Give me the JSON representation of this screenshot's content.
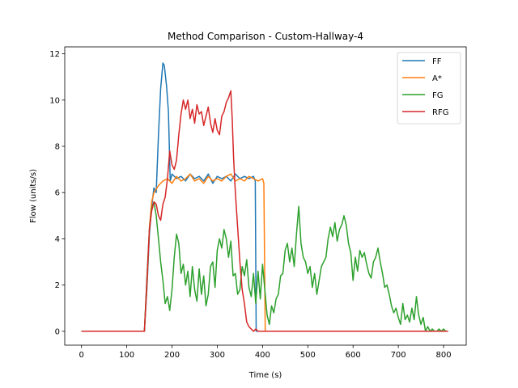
{
  "chart_data": {
    "type": "line",
    "title": "Method Comparison - Custom-Hallway-4",
    "xlabel": "Time (s)",
    "ylabel": "Flow (units/s)",
    "xlim": [
      -37,
      850
    ],
    "ylim": [
      -0.6,
      12.3
    ],
    "x_ticks": [
      0,
      100,
      200,
      300,
      400,
      500,
      600,
      700,
      800
    ],
    "y_ticks": [
      0,
      2,
      4,
      6,
      8,
      10,
      12
    ],
    "grid": false,
    "legend_position": "top-right",
    "series": [
      {
        "name": "FF",
        "color": "#1f77b4",
        "points": [
          [
            0,
            0
          ],
          [
            100,
            0
          ],
          [
            139,
            0
          ],
          [
            145,
            2
          ],
          [
            150,
            4.2
          ],
          [
            155,
            5.4
          ],
          [
            160,
            6.2
          ],
          [
            165,
            6.0
          ],
          [
            170,
            8.5
          ],
          [
            175,
            10.5
          ],
          [
            180,
            11.6
          ],
          [
            183,
            11.5
          ],
          [
            188,
            10.6
          ],
          [
            192,
            9.5
          ],
          [
            196,
            6.5
          ],
          [
            200,
            6.8
          ],
          [
            210,
            6.6
          ],
          [
            220,
            6.7
          ],
          [
            230,
            6.5
          ],
          [
            240,
            6.8
          ],
          [
            250,
            6.6
          ],
          [
            260,
            6.7
          ],
          [
            270,
            6.5
          ],
          [
            280,
            6.8
          ],
          [
            290,
            6.4
          ],
          [
            300,
            6.7
          ],
          [
            310,
            6.6
          ],
          [
            320,
            6.7
          ],
          [
            330,
            6.5
          ],
          [
            340,
            6.8
          ],
          [
            350,
            6.6
          ],
          [
            360,
            6.7
          ],
          [
            370,
            6.6
          ],
          [
            380,
            6.7
          ],
          [
            384,
            6.5
          ],
          [
            386,
            0
          ],
          [
            400,
            0
          ],
          [
            500,
            0
          ],
          [
            600,
            0
          ],
          [
            700,
            0
          ],
          [
            810,
            0
          ]
        ]
      },
      {
        "name": "A*",
        "color": "#ff7f0e",
        "points": [
          [
            0,
            0
          ],
          [
            100,
            0
          ],
          [
            139,
            0
          ],
          [
            145,
            2.2
          ],
          [
            150,
            4.5
          ],
          [
            155,
            5.6
          ],
          [
            160,
            6.0
          ],
          [
            170,
            6.3
          ],
          [
            180,
            6.5
          ],
          [
            190,
            6.6
          ],
          [
            200,
            6.4
          ],
          [
            210,
            6.7
          ],
          [
            220,
            6.5
          ],
          [
            230,
            6.6
          ],
          [
            240,
            6.8
          ],
          [
            250,
            6.5
          ],
          [
            260,
            6.6
          ],
          [
            270,
            6.4
          ],
          [
            280,
            6.7
          ],
          [
            290,
            6.5
          ],
          [
            300,
            6.6
          ],
          [
            310,
            6.5
          ],
          [
            320,
            6.7
          ],
          [
            330,
            6.8
          ],
          [
            340,
            6.5
          ],
          [
            350,
            6.6
          ],
          [
            360,
            6.5
          ],
          [
            370,
            6.7
          ],
          [
            380,
            6.6
          ],
          [
            390,
            6.5
          ],
          [
            400,
            6.6
          ],
          [
            403,
            6.4
          ],
          [
            406,
            0
          ],
          [
            500,
            0
          ],
          [
            600,
            0
          ],
          [
            700,
            0
          ],
          [
            810,
            0
          ]
        ]
      },
      {
        "name": "FG",
        "color": "#2ca02c",
        "points": [
          [
            0,
            0
          ],
          [
            100,
            0
          ],
          [
            139,
            0
          ],
          [
            145,
            2.5
          ],
          [
            150,
            4.4
          ],
          [
            155,
            5.3
          ],
          [
            160,
            5.6
          ],
          [
            165,
            5.0
          ],
          [
            170,
            4.0
          ],
          [
            175,
            3.0
          ],
          [
            180,
            2.2
          ],
          [
            185,
            1.2
          ],
          [
            190,
            1.5
          ],
          [
            195,
            0.9
          ],
          [
            200,
            1.8
          ],
          [
            205,
            3.2
          ],
          [
            210,
            4.2
          ],
          [
            215,
            3.8
          ],
          [
            220,
            2.5
          ],
          [
            225,
            2.9
          ],
          [
            230,
            2.0
          ],
          [
            235,
            2.6
          ],
          [
            240,
            1.5
          ],
          [
            245,
            2.8
          ],
          [
            250,
            1.8
          ],
          [
            255,
            1.3
          ],
          [
            260,
            2.7
          ],
          [
            265,
            1.6
          ],
          [
            270,
            2.4
          ],
          [
            275,
            1.1
          ],
          [
            280,
            1.6
          ],
          [
            285,
            2.8
          ],
          [
            290,
            3.0
          ],
          [
            295,
            1.9
          ],
          [
            300,
            3.5
          ],
          [
            305,
            4.0
          ],
          [
            310,
            3.6
          ],
          [
            315,
            4.4
          ],
          [
            320,
            4.0
          ],
          [
            325,
            3.2
          ],
          [
            330,
            3.9
          ],
          [
            335,
            2.4
          ],
          [
            340,
            2.5
          ],
          [
            345,
            1.6
          ],
          [
            350,
            1.8
          ],
          [
            355,
            2.8
          ],
          [
            360,
            2.4
          ],
          [
            365,
            3.1
          ],
          [
            370,
            1.9
          ],
          [
            375,
            1.5
          ],
          [
            380,
            2.5
          ],
          [
            385,
            1.2
          ],
          [
            390,
            2.6
          ],
          [
            395,
            1.4
          ],
          [
            400,
            2.9
          ],
          [
            405,
            1.8
          ],
          [
            410,
            0.7
          ],
          [
            415,
            0.3
          ],
          [
            420,
            1.1
          ],
          [
            425,
            0.8
          ],
          [
            430,
            1.4
          ],
          [
            435,
            1.6
          ],
          [
            440,
            2.4
          ],
          [
            445,
            2.5
          ],
          [
            450,
            3.5
          ],
          [
            455,
            3.8
          ],
          [
            460,
            3.0
          ],
          [
            465,
            3.6
          ],
          [
            470,
            2.8
          ],
          [
            475,
            4.2
          ],
          [
            480,
            5.4
          ],
          [
            485,
            3.8
          ],
          [
            490,
            3.2
          ],
          [
            495,
            3.0
          ],
          [
            500,
            2.5
          ],
          [
            505,
            2.8
          ],
          [
            510,
            1.9
          ],
          [
            515,
            2.5
          ],
          [
            520,
            1.6
          ],
          [
            525,
            2.2
          ],
          [
            530,
            2.8
          ],
          [
            535,
            3.0
          ],
          [
            540,
            3.2
          ],
          [
            545,
            4.0
          ],
          [
            550,
            4.5
          ],
          [
            555,
            4.1
          ],
          [
            560,
            4.7
          ],
          [
            565,
            3.9
          ],
          [
            570,
            4.4
          ],
          [
            575,
            4.6
          ],
          [
            580,
            5.0
          ],
          [
            585,
            4.6
          ],
          [
            590,
            3.8
          ],
          [
            595,
            3.4
          ],
          [
            600,
            2.2
          ],
          [
            605,
            3.2
          ],
          [
            610,
            2.6
          ],
          [
            615,
            3.5
          ],
          [
            620,
            3.2
          ],
          [
            625,
            3.4
          ],
          [
            630,
            2.9
          ],
          [
            635,
            2.5
          ],
          [
            640,
            2.3
          ],
          [
            645,
            3.0
          ],
          [
            650,
            3.2
          ],
          [
            655,
            3.6
          ],
          [
            660,
            3.0
          ],
          [
            665,
            2.5
          ],
          [
            670,
            1.9
          ],
          [
            675,
            2.0
          ],
          [
            680,
            1.6
          ],
          [
            685,
            1.1
          ],
          [
            690,
            0.8
          ],
          [
            695,
            1.0
          ],
          [
            700,
            0.6
          ],
          [
            705,
            0.3
          ],
          [
            710,
            1.2
          ],
          [
            715,
            0.5
          ],
          [
            720,
            0.7
          ],
          [
            725,
            0.4
          ],
          [
            730,
            1.0
          ],
          [
            735,
            0.5
          ],
          [
            740,
            1.5
          ],
          [
            745,
            0.7
          ],
          [
            750,
            0.3
          ],
          [
            755,
            0.6
          ],
          [
            760,
            0
          ],
          [
            765,
            0.2
          ],
          [
            770,
            0
          ],
          [
            775,
            0.1
          ],
          [
            780,
            0
          ],
          [
            785,
            0
          ],
          [
            790,
            0.1
          ],
          [
            795,
            0
          ],
          [
            800,
            0.1
          ],
          [
            805,
            0
          ],
          [
            810,
            0
          ]
        ]
      },
      {
        "name": "RFG",
        "color": "#d62728",
        "points": [
          [
            0,
            0
          ],
          [
            100,
            0
          ],
          [
            139,
            0
          ],
          [
            145,
            2.4
          ],
          [
            150,
            4.4
          ],
          [
            155,
            5.2
          ],
          [
            160,
            5.6
          ],
          [
            165,
            5.5
          ],
          [
            170,
            5.0
          ],
          [
            175,
            4.8
          ],
          [
            180,
            5.5
          ],
          [
            185,
            5.8
          ],
          [
            190,
            6.6
          ],
          [
            195,
            7.8
          ],
          [
            200,
            7.2
          ],
          [
            205,
            7.0
          ],
          [
            210,
            7.4
          ],
          [
            215,
            8.5
          ],
          [
            220,
            9.4
          ],
          [
            225,
            10.0
          ],
          [
            230,
            9.6
          ],
          [
            235,
            10.0
          ],
          [
            240,
            9.2
          ],
          [
            245,
            9.6
          ],
          [
            250,
            9.0
          ],
          [
            255,
            9.8
          ],
          [
            260,
            9.4
          ],
          [
            265,
            9.5
          ],
          [
            270,
            8.9
          ],
          [
            275,
            9.3
          ],
          [
            280,
            9.7
          ],
          [
            285,
            9.0
          ],
          [
            290,
            8.6
          ],
          [
            295,
            9.2
          ],
          [
            300,
            8.7
          ],
          [
            305,
            8.5
          ],
          [
            310,
            9.3
          ],
          [
            315,
            9.5
          ],
          [
            320,
            9.9
          ],
          [
            325,
            10.1
          ],
          [
            330,
            10.4
          ],
          [
            333,
            9.2
          ],
          [
            336,
            7.5
          ],
          [
            340,
            6.0
          ],
          [
            345,
            4.5
          ],
          [
            350,
            3.0
          ],
          [
            355,
            1.8
          ],
          [
            360,
            1.2
          ],
          [
            365,
            0.4
          ],
          [
            370,
            0.2
          ],
          [
            375,
            0.1
          ],
          [
            380,
            0
          ],
          [
            385,
            0.1
          ],
          [
            390,
            0
          ],
          [
            395,
            0
          ],
          [
            400,
            0
          ],
          [
            500,
            0
          ],
          [
            600,
            0
          ],
          [
            700,
            0
          ],
          [
            810,
            0
          ]
        ]
      }
    ]
  }
}
